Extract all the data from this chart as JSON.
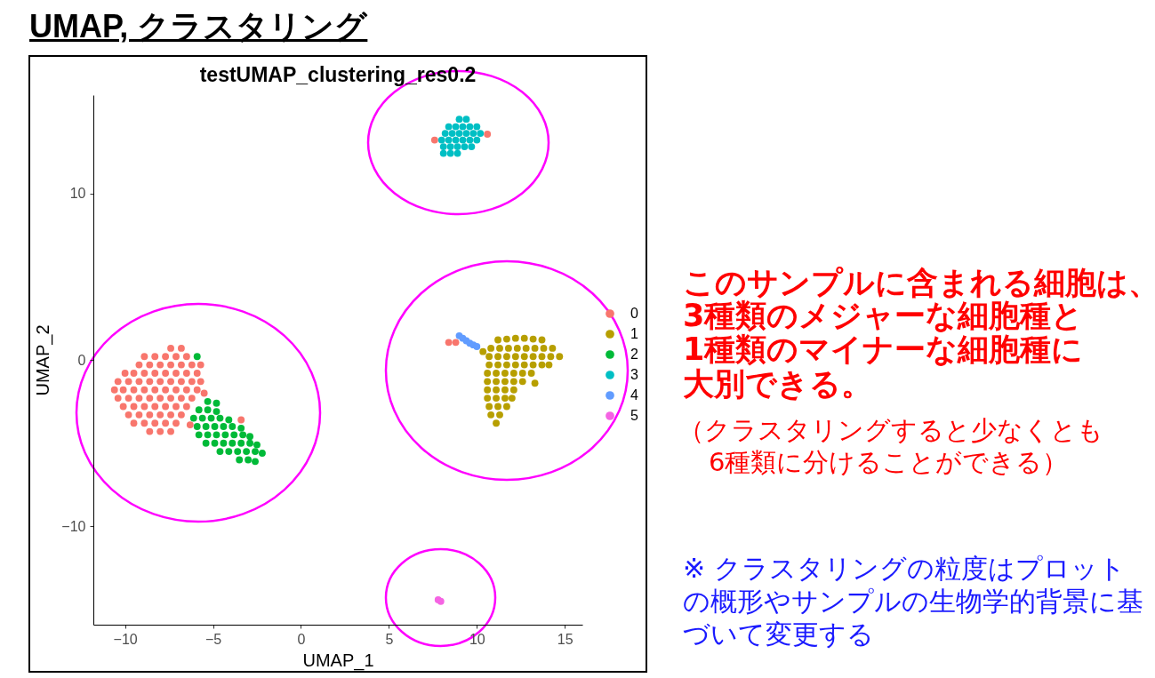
{
  "chart_data": {
    "type": "scatter",
    "title": "UMAP, クラスタリング",
    "subtitle": "testUMAP_clustering_res0.2",
    "xlabel": "UMAP_1",
    "ylabel": "UMAP_2",
    "xlim": [
      -11.8,
      16
    ],
    "xticks": [
      -10,
      -5,
      0,
      5,
      10,
      15
    ],
    "ylim": [
      -15.9,
      15.9
    ],
    "yticks": [
      -10,
      0,
      10
    ],
    "legend": "right",
    "marker": "circle",
    "series": [
      {
        "name": "0",
        "color": "#f8766d",
        "x": [
          -7.4,
          -6.8,
          -8.9,
          -8.3,
          -7.7,
          -7.1,
          -6.5,
          -9.2,
          -8.6,
          -8.0,
          -7.4,
          -6.8,
          -6.2,
          -5.7,
          -10.0,
          -9.5,
          -8.9,
          -8.3,
          -7.7,
          -7.1,
          -6.5,
          -5.9,
          -10.4,
          -9.8,
          -9.2,
          -8.6,
          -8.0,
          -7.4,
          -6.8,
          -6.2,
          -5.7,
          -10.6,
          -10.1,
          -9.5,
          -8.9,
          -8.3,
          -7.7,
          -7.1,
          -6.5,
          -5.9,
          -10.4,
          -9.8,
          -9.2,
          -8.6,
          -8.0,
          -7.4,
          -6.8,
          -6.2,
          -10.1,
          -9.5,
          -8.9,
          -8.3,
          -7.7,
          -7.1,
          -6.5,
          -9.8,
          -9.2,
          -8.6,
          -8.0,
          -7.4,
          -6.8,
          -9.5,
          -8.9,
          -8.3,
          -7.7,
          -7.1,
          -8.6,
          -8.0,
          -7.4,
          -5.5,
          -6.3,
          -3.4,
          7.6,
          10.6,
          8.4,
          8.8
        ],
        "values": [
          0.7,
          0.7,
          0.2,
          0.2,
          0.2,
          0.2,
          0.2,
          -0.3,
          -0.3,
          -0.3,
          -0.3,
          -0.3,
          -0.3,
          -0.3,
          -0.8,
          -0.8,
          -0.8,
          -0.8,
          -0.8,
          -0.8,
          -0.8,
          -0.8,
          -1.3,
          -1.3,
          -1.3,
          -1.3,
          -1.3,
          -1.3,
          -1.3,
          -1.3,
          -1.3,
          -1.8,
          -1.8,
          -1.8,
          -1.8,
          -1.8,
          -1.8,
          -1.8,
          -1.8,
          -1.8,
          -2.3,
          -2.3,
          -2.3,
          -2.3,
          -2.3,
          -2.3,
          -2.3,
          -2.3,
          -2.8,
          -2.8,
          -2.8,
          -2.8,
          -2.8,
          -2.8,
          -2.8,
          -3.3,
          -3.3,
          -3.3,
          -3.3,
          -3.3,
          -3.3,
          -3.8,
          -3.8,
          -3.8,
          -3.8,
          -3.8,
          -4.3,
          -4.3,
          -4.3,
          -2.0,
          -3.9,
          -3.6,
          13.2,
          13.55,
          1.05,
          1.05
        ]
      },
      {
        "name": "1",
        "color": "#b79f00",
        "x": [
          11.2,
          11.7,
          12.2,
          12.7,
          13.2,
          13.7,
          10.8,
          11.3,
          11.8,
          12.3,
          12.8,
          13.3,
          13.8,
          14.3,
          10.7,
          11.2,
          11.7,
          12.2,
          12.7,
          13.2,
          13.7,
          14.2,
          14.7,
          10.7,
          11.2,
          11.7,
          12.2,
          12.7,
          13.2,
          13.7,
          14.1,
          10.6,
          11.1,
          11.6,
          12.1,
          12.6,
          13.1,
          10.6,
          11.1,
          11.6,
          12.1,
          12.6,
          10.6,
          11.1,
          11.6,
          12.1,
          10.6,
          11.1,
          11.6,
          12.0,
          10.7,
          11.2,
          11.7,
          10.8,
          11.3,
          11.1,
          10.35,
          13.3
        ],
        "values": [
          1.2,
          1.25,
          1.3,
          1.3,
          1.25,
          1.2,
          0.7,
          0.7,
          0.7,
          0.7,
          0.7,
          0.7,
          0.7,
          0.7,
          0.2,
          0.2,
          0.2,
          0.2,
          0.2,
          0.2,
          0.2,
          0.2,
          0.2,
          -0.3,
          -0.3,
          -0.3,
          -0.3,
          -0.3,
          -0.3,
          -0.3,
          -0.3,
          -0.8,
          -0.8,
          -0.8,
          -0.8,
          -0.8,
          -0.8,
          -1.3,
          -1.3,
          -1.3,
          -1.3,
          -1.3,
          -1.8,
          -1.8,
          -1.8,
          -1.8,
          -2.3,
          -2.3,
          -2.3,
          -2.3,
          -2.8,
          -2.8,
          -2.8,
          -3.3,
          -3.3,
          -3.8,
          0.5,
          -1.4
        ]
      },
      {
        "name": "2",
        "color": "#00ba38",
        "x": [
          -5.3,
          -4.8,
          -5.8,
          -5.3,
          -4.8,
          -6.1,
          -5.6,
          -5.1,
          -4.6,
          -4.1,
          -5.9,
          -5.4,
          -4.9,
          -4.4,
          -3.9,
          -3.4,
          -5.8,
          -5.3,
          -4.8,
          -4.3,
          -3.8,
          -3.3,
          -2.9,
          -5.4,
          -4.9,
          -4.4,
          -3.9,
          -3.4,
          -2.9,
          -2.5,
          -4.6,
          -4.1,
          -3.6,
          -3.1,
          -2.6,
          -2.2,
          -3.5,
          -3.0,
          -2.6,
          -5.9
        ],
        "values": [
          -2.5,
          -2.6,
          -3.0,
          -3.0,
          -3.1,
          -3.5,
          -3.5,
          -3.5,
          -3.5,
          -3.6,
          -4.0,
          -4.0,
          -4.0,
          -4.0,
          -4.0,
          -4.1,
          -4.5,
          -4.5,
          -4.5,
          -4.5,
          -4.5,
          -4.5,
          -4.6,
          -5.0,
          -5.0,
          -5.0,
          -5.0,
          -5.0,
          -5.0,
          -5.1,
          -5.5,
          -5.5,
          -5.5,
          -5.5,
          -5.5,
          -5.6,
          -6.0,
          -6.0,
          -6.1,
          0.2
        ]
      },
      {
        "name": "3",
        "color": "#00bfc4",
        "x": [
          9.0,
          9.4,
          8.4,
          8.8,
          9.2,
          9.6,
          10.0,
          8.2,
          8.6,
          9.0,
          9.4,
          9.8,
          10.2,
          8.0,
          8.4,
          8.8,
          9.2,
          9.6,
          10.0,
          8.1,
          8.5,
          8.9,
          9.3,
          9.7,
          8.1,
          8.5,
          8.9
        ],
        "values": [
          14.45,
          14.45,
          14.0,
          14.0,
          14.0,
          14.0,
          14.0,
          13.6,
          13.6,
          13.6,
          13.6,
          13.6,
          13.6,
          13.2,
          13.2,
          13.2,
          13.2,
          13.2,
          13.2,
          12.8,
          12.8,
          12.8,
          12.8,
          12.8,
          12.4,
          12.4,
          12.4
        ]
      },
      {
        "name": "4",
        "color": "#619cff",
        "x": [
          9.0,
          9.2,
          9.4,
          9.6,
          9.8,
          10.0
        ],
        "values": [
          1.45,
          1.3,
          1.15,
          1.0,
          0.9,
          0.8
        ]
      },
      {
        "name": "5",
        "color": "#f564e3",
        "x": [
          7.8,
          7.95
        ],
        "values": [
          -14.4,
          -14.5
        ]
      }
    ],
    "annotations": [
      "このサンプルに含まれる細胞は、",
      "3種類のメジャーな細胞種と",
      "1種類のマイナーな細胞種に",
      "大別できる。",
      "（クラスタリングすると少なくとも",
      "6種類に分けることができる）",
      "※ クラスタリングの粒度はプロット",
      "の概形やサンプルの生物学的背景に基",
      "づいて変更する"
    ]
  }
}
